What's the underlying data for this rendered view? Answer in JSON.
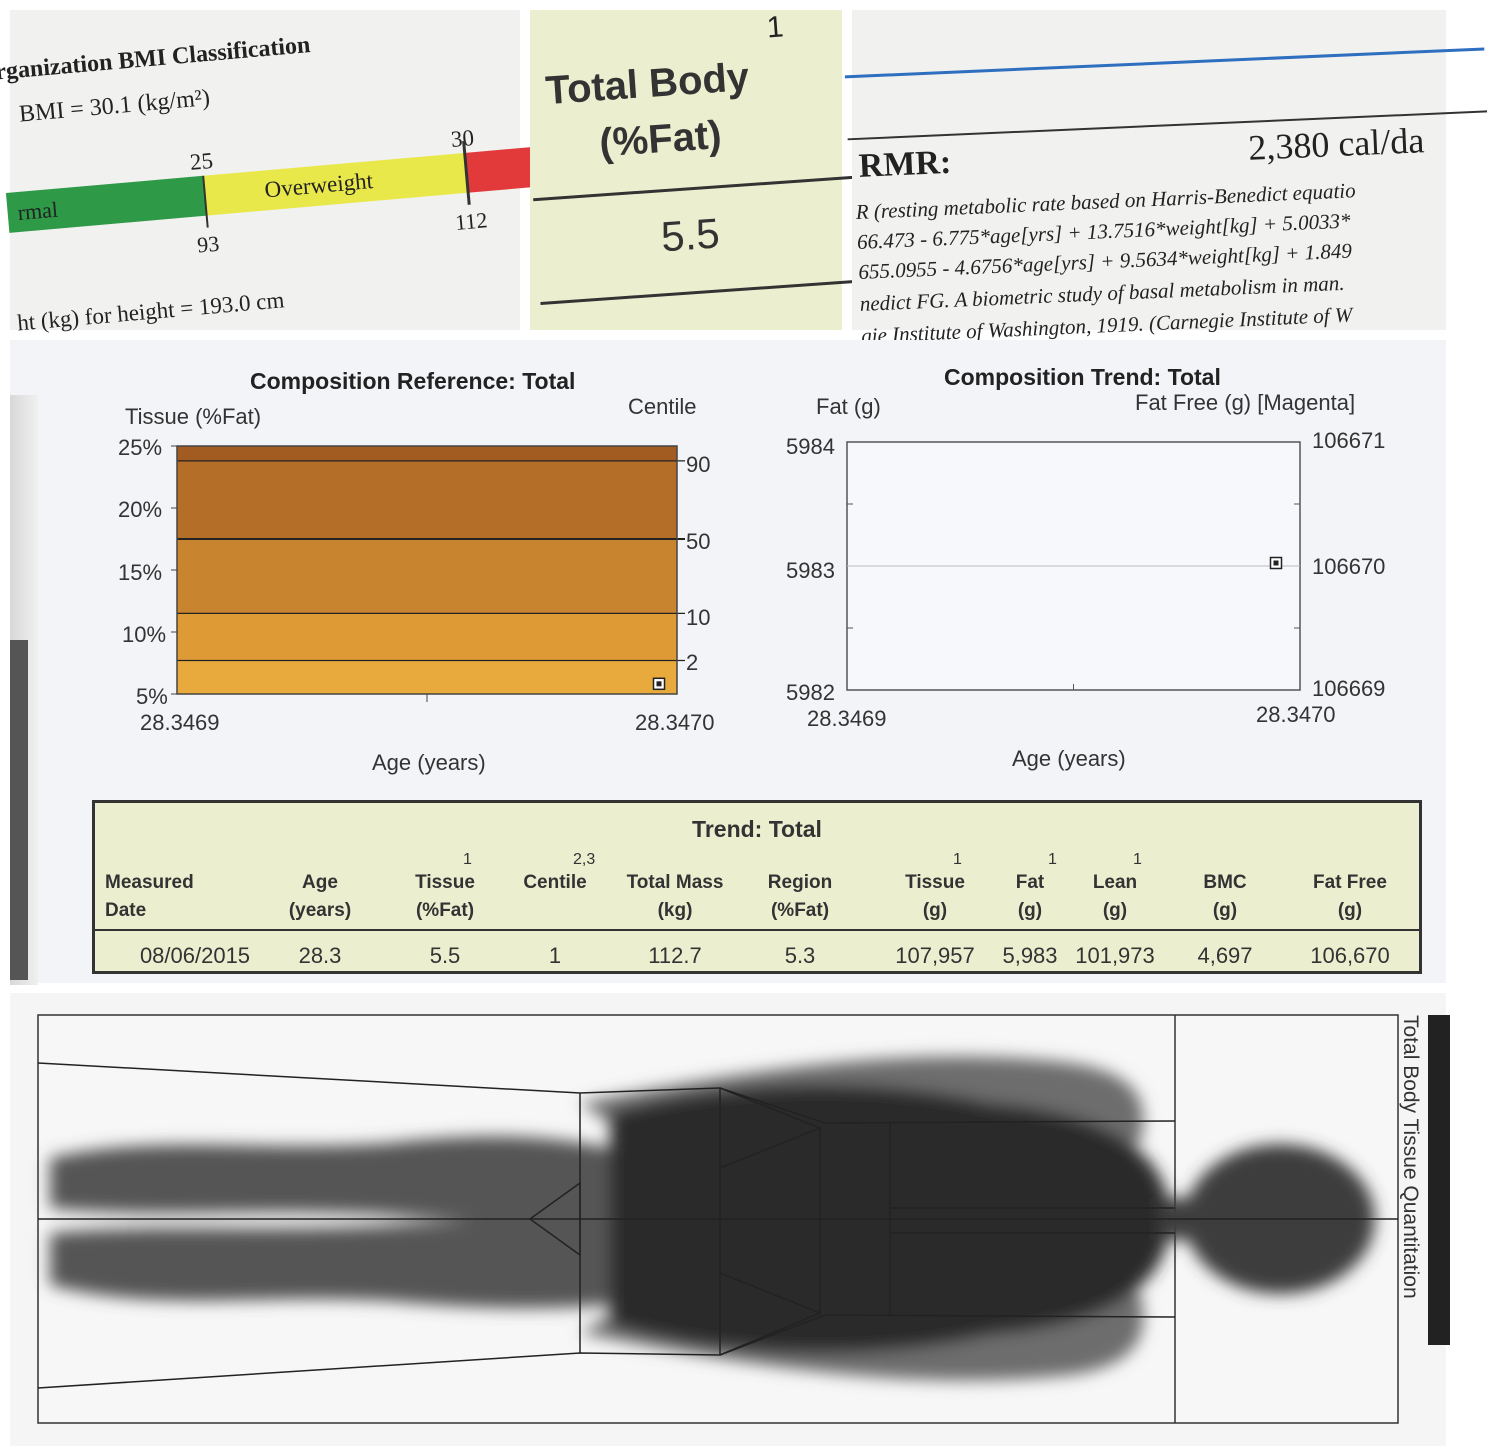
{
  "bmi_panel": {
    "title": "rganization BMI Classification",
    "bmi_value": "BMI = 30.1 (kg/m²)",
    "tick_25": "25",
    "tick_30": "30",
    "label_normal": "rmal",
    "label_overweight": "Overweight",
    "weight_93": "93",
    "weight_112": "112",
    "height_text": "ht (kg) for height = 193.0 cm",
    "colors": {
      "normal": "#2e9a48",
      "overweight": "#e9e84a",
      "obese": "#e23a3a"
    }
  },
  "total_body_panel": {
    "superscript": "1",
    "title_line1": "Total Body",
    "title_line2": "(%Fat)",
    "value": "5.5"
  },
  "rmr_panel": {
    "label": "RMR:",
    "value": "2,380 cal/da",
    "desc_line1": "R (resting metabolic rate based on Harris-Benedict equatio",
    "desc_line2": "66.473 - 6.775*age[yrs] + 13.7516*weight[kg] + 5.0033*",
    "desc_line3": "655.0955 - 4.6756*age[yrs] + 9.5634*weight[kg] + 1.849",
    "desc_line4": "nedict FG.  A biometric study of basal metabolism in man.",
    "desc_line5": "gie Institute of Washington, 1919. (Carnegie Institute of W"
  },
  "composition_reference": {
    "title": "Composition Reference: Total",
    "left_axis_label": "Tissue (%Fat)",
    "right_axis_label": "Centile",
    "y_ticks": [
      "25%",
      "20%",
      "15%",
      "10%",
      "5%"
    ],
    "centile_ticks": [
      "90",
      "50",
      "10",
      "2"
    ],
    "x_start": "28.3469",
    "x_end": "28.3470",
    "x_axis_label": "Age (years)",
    "band_colors": [
      "#a25c22",
      "#b56e28",
      "#c9842f",
      "#de9b35",
      "#e8a93d"
    ]
  },
  "composition_trend": {
    "title": "Composition Trend: Total",
    "left_axis_label": "Fat (g)",
    "right_axis_label": "Fat Free (g) [Magenta]",
    "left_ticks": [
      "5984",
      "5983",
      "5982"
    ],
    "right_ticks": [
      "106671",
      "106670",
      "106669"
    ],
    "x_start": "28.3469",
    "x_end": "28.3470",
    "x_axis_label": "Age (years)"
  },
  "chart_data": [
    {
      "type": "scatter",
      "title": "Composition Reference: Total",
      "xlabel": "Age (years)",
      "ylabel": "Tissue (%Fat)",
      "xlim": [
        28.3469,
        28.347
      ],
      "ylim": [
        5,
        25
      ],
      "centile_lines": [
        {
          "centile": "90",
          "y": 23.8
        },
        {
          "centile": "50",
          "y": 17.5
        },
        {
          "centile": "10",
          "y": 11.5
        },
        {
          "centile": "2",
          "y": 7.7
        }
      ],
      "points": [
        {
          "x": 28.347,
          "y": 5.5
        }
      ]
    },
    {
      "type": "scatter",
      "title": "Composition Trend: Total",
      "xlabel": "Age (years)",
      "ylabel": "Fat (g)",
      "y2label": "Fat Free (g) [Magenta]",
      "xlim": [
        28.3469,
        28.347
      ],
      "ylim": [
        5982,
        5984
      ],
      "y2lim": [
        106669,
        106671
      ],
      "points": [
        {
          "x": 28.347,
          "y": 5983,
          "y2": 106670
        }
      ]
    }
  ],
  "trend_table": {
    "title": "Trend: Total",
    "headers": [
      {
        "l1": "Measured",
        "l2": "Date",
        "sup": ""
      },
      {
        "l1": "Age",
        "l2": "(years)",
        "sup": ""
      },
      {
        "l1": "Tissue",
        "l2": "(%Fat)",
        "sup": "1"
      },
      {
        "l1": "Centile",
        "l2": "",
        "sup": "2,3"
      },
      {
        "l1": "Total Mass",
        "l2": "(kg)",
        "sup": ""
      },
      {
        "l1": "Region",
        "l2": "(%Fat)",
        "sup": ""
      },
      {
        "l1": "Tissue",
        "l2": "(g)",
        "sup": "1"
      },
      {
        "l1": "Fat",
        "l2": "(g)",
        "sup": "1"
      },
      {
        "l1": "Lean",
        "l2": "(g)",
        "sup": "1"
      },
      {
        "l1": "BMC",
        "l2": "(g)",
        "sup": ""
      },
      {
        "l1": "Fat Free",
        "l2": "(g)",
        "sup": ""
      }
    ],
    "row": [
      "08/06/2015",
      "28.3",
      "5.5",
      "1",
      "112.7",
      "5.3",
      "107,957",
      "5,983",
      "101,973",
      "4,697",
      "106,670"
    ]
  },
  "scan_panel": {
    "side_label": "Total Body Tissue Quantitation"
  }
}
